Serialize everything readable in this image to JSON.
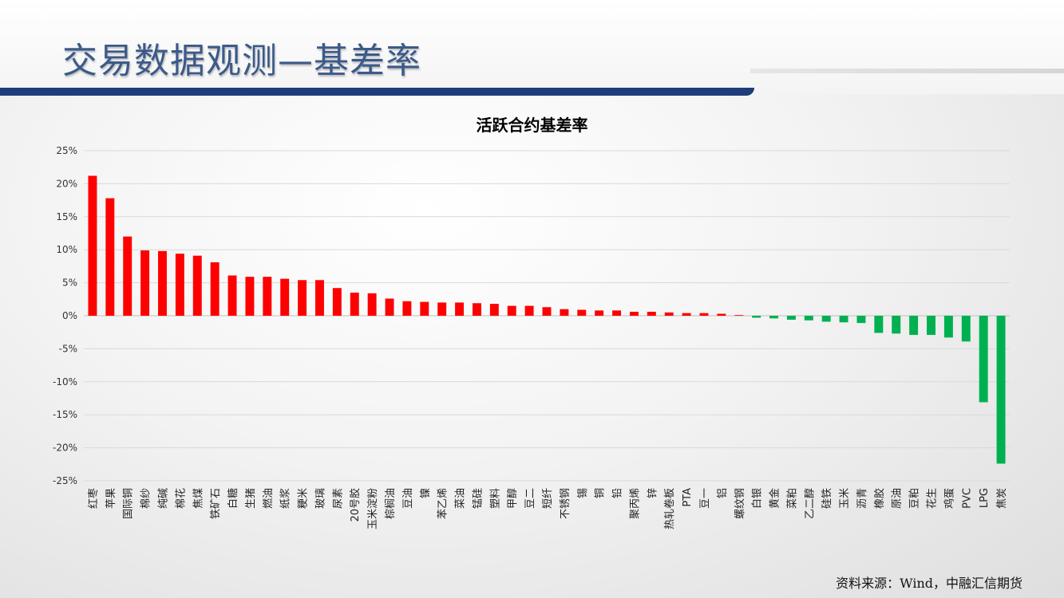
{
  "header": {
    "title": "交易数据观测—基差率"
  },
  "source_text": "资料来源：Wind，中融汇信期货",
  "colors": {
    "positive": "#ff0000",
    "negative": "#00b050",
    "header_bar": "#1f3d7a",
    "grid": "#d9d9d9"
  },
  "chart_data": {
    "type": "bar",
    "title": "活跃合约基差率",
    "xlabel": "",
    "ylabel": "",
    "ylim": [
      -25,
      25
    ],
    "yticks": [
      25,
      20,
      15,
      10,
      5,
      0,
      -5,
      -10,
      -15,
      -20,
      -25
    ],
    "ytick_labels": [
      "25%",
      "20%",
      "15%",
      "10%",
      "5%",
      "0%",
      "-5%",
      "-10%",
      "-15%",
      "-20%",
      "-25%"
    ],
    "grid": true,
    "categories": [
      "红枣",
      "苹果",
      "国际铜",
      "棉纱",
      "纯碱",
      "棉花",
      "焦煤",
      "铁矿石",
      "白糖",
      "生猪",
      "燃油",
      "纸浆",
      "粳米",
      "玻璃",
      "尿素",
      "20号胶",
      "玉米淀粉",
      "棕榈油",
      "豆油",
      "镍",
      "苯乙烯",
      "菜油",
      "锰硅",
      "塑料",
      "甲醇",
      "豆二",
      "短纤",
      "不锈钢",
      "锡",
      "铜",
      "铅",
      "聚丙烯",
      "锌",
      "热轧卷板",
      "PTA",
      "豆一",
      "铝",
      "螺纹钢",
      "白银",
      "黄金",
      "菜粕",
      "乙二醇",
      "硅铁",
      "玉米",
      "沥青",
      "橡胶",
      "原油",
      "豆粕",
      "花生",
      "鸡蛋",
      "PVC",
      "LPG",
      "焦炭"
    ],
    "values": [
      21.2,
      17.8,
      12.0,
      9.9,
      9.8,
      9.4,
      9.1,
      8.1,
      6.1,
      5.9,
      5.9,
      5.6,
      5.4,
      5.4,
      4.2,
      3.5,
      3.4,
      2.6,
      2.2,
      2.1,
      2.0,
      2.0,
      1.9,
      1.8,
      1.5,
      1.5,
      1.3,
      1.0,
      0.9,
      0.8,
      0.8,
      0.6,
      0.6,
      0.5,
      0.4,
      0.4,
      0.3,
      0.1,
      -0.3,
      -0.4,
      -0.6,
      -0.7,
      -0.9,
      -1.0,
      -1.1,
      -2.6,
      -2.7,
      -2.9,
      -2.9,
      -3.3,
      -3.9,
      -13.1,
      -22.4
    ]
  }
}
